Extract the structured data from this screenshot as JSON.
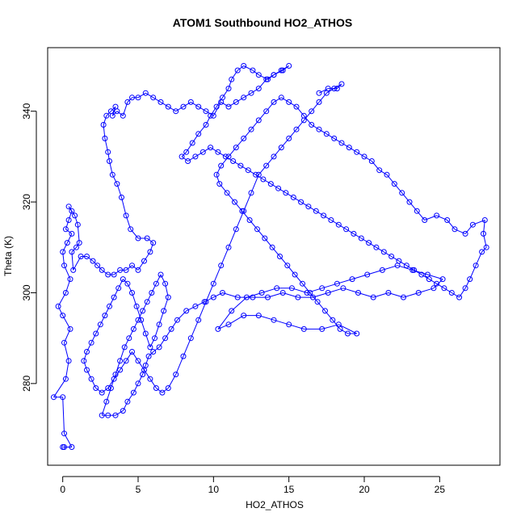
{
  "chart_data": {
    "type": "scatter",
    "title": "ATOM1 Southbound HO2_ATHOS",
    "xlabel": "HO2_ATHOS",
    "ylabel": "Theta (K)",
    "xlim": [
      -1,
      29
    ],
    "ylim": [
      262,
      354
    ],
    "xticks": [
      0,
      5,
      10,
      15,
      20,
      25
    ],
    "yticks": [
      280,
      300,
      320,
      340
    ],
    "grid": false,
    "legend": "none",
    "marker": "open-circle",
    "connected": true,
    "color": "#0000ff",
    "series": [
      {
        "points": [
          [
            0.1,
            266
          ],
          [
            0.0,
            266
          ],
          [
            0.6,
            266
          ],
          [
            0.1,
            269
          ],
          [
            0.0,
            277
          ],
          [
            -0.6,
            277
          ],
          [
            0.2,
            281
          ],
          [
            0.4,
            285
          ],
          [
            0.1,
            289
          ],
          [
            0.5,
            292
          ],
          [
            0.0,
            295
          ],
          [
            -0.3,
            297
          ],
          [
            0.2,
            300
          ],
          [
            0.5,
            303
          ],
          [
            0.1,
            306
          ],
          [
            0.0,
            309
          ],
          [
            0.3,
            311
          ],
          [
            0.6,
            313
          ],
          [
            0.2,
            314
          ],
          [
            0.4,
            316
          ],
          [
            0.6,
            318
          ],
          [
            0.4,
            319
          ],
          [
            0.8,
            317
          ],
          [
            1.0,
            315
          ],
          [
            1.1,
            311
          ],
          [
            0.9,
            310
          ],
          [
            0.6,
            309
          ],
          [
            0.7,
            305
          ],
          [
            1.2,
            308
          ],
          [
            1.6,
            308
          ],
          [
            2.0,
            307
          ],
          [
            2.3,
            306
          ],
          [
            2.6,
            305
          ],
          [
            3.0,
            304
          ],
          [
            3.4,
            304
          ],
          [
            3.8,
            305
          ],
          [
            4.2,
            305
          ],
          [
            4.6,
            306
          ],
          [
            5.0,
            305
          ],
          [
            5.4,
            307
          ],
          [
            5.8,
            309
          ],
          [
            6.0,
            311
          ],
          [
            5.6,
            312
          ],
          [
            5.0,
            312
          ],
          [
            4.5,
            314
          ],
          [
            4.2,
            317
          ],
          [
            3.9,
            321
          ],
          [
            3.6,
            324
          ],
          [
            3.3,
            326
          ],
          [
            3.1,
            329
          ],
          [
            3.0,
            331
          ],
          [
            2.8,
            334
          ],
          [
            2.7,
            337
          ],
          [
            2.9,
            339
          ],
          [
            3.2,
            340
          ],
          [
            3.5,
            341
          ],
          [
            3.3,
            339
          ],
          [
            3.6,
            340
          ],
          [
            4.0,
            339
          ],
          [
            4.3,
            342
          ],
          [
            4.6,
            343
          ],
          [
            5.0,
            343
          ],
          [
            5.5,
            344
          ],
          [
            6.0,
            343
          ],
          [
            6.5,
            342
          ],
          [
            7.0,
            341
          ],
          [
            7.5,
            340
          ],
          [
            8.0,
            341
          ],
          [
            8.5,
            342
          ],
          [
            9.0,
            341
          ],
          [
            9.5,
            340
          ],
          [
            10.0,
            339
          ],
          [
            10.5,
            342
          ],
          [
            11.0,
            341
          ],
          [
            11.5,
            342
          ],
          [
            12.0,
            343
          ],
          [
            12.5,
            344
          ],
          [
            13.0,
            345
          ],
          [
            13.5,
            347
          ],
          [
            14.0,
            348
          ],
          [
            14.5,
            349
          ],
          [
            15.0,
            350
          ],
          [
            14.6,
            349
          ],
          [
            14.0,
            348
          ],
          [
            13.6,
            347
          ],
          [
            13.0,
            348
          ],
          [
            12.6,
            349
          ],
          [
            12.0,
            350
          ],
          [
            11.6,
            349
          ],
          [
            11.2,
            347
          ],
          [
            11.0,
            345
          ],
          [
            10.6,
            343
          ],
          [
            10.2,
            341
          ],
          [
            9.8,
            339
          ],
          [
            9.5,
            337
          ],
          [
            9.0,
            335
          ],
          [
            8.6,
            333
          ],
          [
            8.2,
            331
          ],
          [
            7.9,
            330
          ],
          [
            8.3,
            329
          ],
          [
            8.8,
            330
          ],
          [
            9.3,
            331
          ],
          [
            9.8,
            332
          ],
          [
            10.3,
            331
          ],
          [
            10.8,
            330
          ],
          [
            11.3,
            329
          ],
          [
            11.8,
            328
          ],
          [
            12.3,
            327
          ],
          [
            12.8,
            326
          ],
          [
            13.3,
            325
          ],
          [
            13.8,
            324
          ],
          [
            14.3,
            323
          ],
          [
            14.8,
            322
          ],
          [
            15.3,
            321
          ],
          [
            15.8,
            320
          ],
          [
            16.3,
            319
          ],
          [
            16.8,
            318
          ],
          [
            17.3,
            317
          ],
          [
            17.8,
            316
          ],
          [
            18.3,
            315
          ],
          [
            18.8,
            314
          ],
          [
            19.3,
            313
          ],
          [
            19.8,
            312
          ],
          [
            20.3,
            311
          ],
          [
            20.8,
            310
          ],
          [
            21.3,
            309
          ],
          [
            21.8,
            308
          ],
          [
            22.3,
            307
          ],
          [
            22.8,
            306
          ],
          [
            23.3,
            305
          ],
          [
            23.8,
            304
          ],
          [
            24.3,
            303
          ],
          [
            24.8,
            302
          ],
          [
            25.3,
            301
          ],
          [
            25.8,
            300
          ],
          [
            26.3,
            299
          ],
          [
            26.7,
            301
          ],
          [
            27.0,
            303
          ],
          [
            27.4,
            306
          ],
          [
            27.8,
            309
          ],
          [
            28.1,
            310
          ],
          [
            27.9,
            313
          ],
          [
            28.0,
            316
          ],
          [
            27.2,
            315
          ],
          [
            26.7,
            313
          ],
          [
            26.0,
            314
          ],
          [
            25.5,
            316
          ],
          [
            24.8,
            317
          ],
          [
            24.0,
            316
          ],
          [
            23.5,
            318
          ],
          [
            23.0,
            320
          ],
          [
            22.5,
            322
          ],
          [
            22.0,
            324
          ],
          [
            21.5,
            326
          ],
          [
            21.0,
            327
          ],
          [
            20.5,
            329
          ],
          [
            20.0,
            330
          ],
          [
            19.5,
            331
          ],
          [
            19.0,
            332
          ],
          [
            18.5,
            333
          ],
          [
            18.0,
            334
          ],
          [
            17.5,
            335
          ],
          [
            17.0,
            336
          ],
          [
            16.5,
            337
          ],
          [
            16.0,
            339
          ],
          [
            15.5,
            341
          ],
          [
            15.0,
            342
          ],
          [
            14.5,
            343
          ],
          [
            14.0,
            342
          ],
          [
            13.5,
            340
          ],
          [
            13.0,
            338
          ],
          [
            12.5,
            336
          ],
          [
            12.0,
            334
          ],
          [
            11.5,
            332
          ],
          [
            11.0,
            330
          ],
          [
            10.5,
            328
          ],
          [
            10.2,
            326
          ],
          [
            10.4,
            324
          ],
          [
            10.9,
            322
          ],
          [
            11.4,
            320
          ],
          [
            11.9,
            318
          ],
          [
            12.4,
            316
          ],
          [
            12.9,
            314
          ],
          [
            13.4,
            312
          ],
          [
            13.9,
            310
          ],
          [
            14.4,
            308
          ],
          [
            14.9,
            306
          ],
          [
            15.4,
            304
          ],
          [
            15.9,
            302
          ],
          [
            16.4,
            300
          ],
          [
            16.9,
            298
          ],
          [
            17.4,
            296
          ],
          [
            17.9,
            294
          ],
          [
            18.4,
            292
          ],
          [
            18.9,
            291
          ],
          [
            19.5,
            291
          ],
          [
            18.3,
            293
          ],
          [
            17.2,
            292
          ],
          [
            16.0,
            292
          ],
          [
            15.0,
            293
          ],
          [
            14.0,
            294
          ],
          [
            13.0,
            295
          ],
          [
            12.0,
            295
          ],
          [
            11.0,
            293
          ],
          [
            10.3,
            292
          ],
          [
            11.2,
            296
          ],
          [
            12.2,
            299
          ],
          [
            13.2,
            300
          ],
          [
            14.2,
            301
          ],
          [
            15.2,
            301
          ],
          [
            16.2,
            300
          ],
          [
            17.2,
            301
          ],
          [
            18.2,
            302
          ],
          [
            19.2,
            303
          ],
          [
            20.2,
            304
          ],
          [
            21.2,
            305
          ],
          [
            22.2,
            306
          ],
          [
            23.2,
            305
          ],
          [
            24.2,
            304
          ],
          [
            25.2,
            303
          ],
          [
            24.6,
            301
          ],
          [
            23.6,
            300
          ],
          [
            22.6,
            299
          ],
          [
            21.6,
            300
          ],
          [
            20.6,
            299
          ],
          [
            19.6,
            300
          ],
          [
            18.6,
            301
          ],
          [
            17.6,
            300
          ],
          [
            16.6,
            299
          ],
          [
            15.6,
            299
          ],
          [
            14.6,
            300
          ],
          [
            13.6,
            299
          ],
          [
            12.6,
            299
          ],
          [
            11.6,
            299
          ],
          [
            10.6,
            300
          ],
          [
            10.0,
            299
          ],
          [
            9.4,
            298
          ],
          [
            8.8,
            297
          ],
          [
            8.2,
            296
          ],
          [
            7.6,
            294
          ],
          [
            7.2,
            292
          ],
          [
            6.8,
            290
          ],
          [
            6.4,
            288
          ],
          [
            6.0,
            287
          ],
          [
            5.7,
            286
          ],
          [
            5.5,
            284
          ],
          [
            5.3,
            282
          ],
          [
            5.0,
            280
          ],
          [
            4.7,
            278
          ],
          [
            4.3,
            276
          ],
          [
            4.0,
            274
          ],
          [
            3.5,
            273
          ],
          [
            3.0,
            273
          ],
          [
            2.6,
            273
          ],
          [
            2.9,
            276
          ],
          [
            3.2,
            279
          ],
          [
            3.5,
            282
          ],
          [
            3.8,
            285
          ],
          [
            4.1,
            288
          ],
          [
            4.4,
            290
          ],
          [
            4.7,
            292
          ],
          [
            5.0,
            294
          ],
          [
            5.3,
            296
          ],
          [
            5.6,
            298
          ],
          [
            5.9,
            300
          ],
          [
            6.2,
            302
          ],
          [
            6.5,
            304
          ],
          [
            6.8,
            302
          ],
          [
            7.0,
            299
          ],
          [
            6.7,
            296
          ],
          [
            6.4,
            293
          ],
          [
            6.1,
            290
          ],
          [
            5.8,
            288
          ],
          [
            5.5,
            291
          ],
          [
            5.2,
            294
          ],
          [
            4.9,
            297
          ],
          [
            4.6,
            300
          ],
          [
            4.3,
            302
          ],
          [
            4.0,
            303
          ],
          [
            3.7,
            301
          ],
          [
            3.4,
            299
          ],
          [
            3.1,
            297
          ],
          [
            2.8,
            295
          ],
          [
            2.5,
            293
          ],
          [
            2.2,
            291
          ],
          [
            1.9,
            289
          ],
          [
            1.6,
            287
          ],
          [
            1.4,
            285
          ],
          [
            1.6,
            283
          ],
          [
            1.9,
            281
          ],
          [
            2.2,
            279
          ],
          [
            2.6,
            278
          ],
          [
            3.0,
            279
          ],
          [
            3.4,
            281
          ],
          [
            3.8,
            283
          ],
          [
            4.2,
            285
          ],
          [
            4.6,
            287
          ],
          [
            5.0,
            285
          ],
          [
            5.4,
            283
          ],
          [
            5.8,
            281
          ],
          [
            6.2,
            279
          ],
          [
            6.6,
            278
          ],
          [
            7.0,
            279
          ],
          [
            7.5,
            282
          ],
          [
            8.0,
            286
          ],
          [
            8.5,
            290
          ],
          [
            9.0,
            294
          ],
          [
            9.5,
            298
          ],
          [
            10.0,
            302
          ],
          [
            10.5,
            306
          ],
          [
            11.0,
            310
          ],
          [
            11.5,
            314
          ],
          [
            12.0,
            318
          ],
          [
            12.5,
            322
          ],
          [
            13.0,
            326
          ],
          [
            13.5,
            328
          ],
          [
            14.0,
            330
          ],
          [
            14.5,
            332
          ],
          [
            15.0,
            334
          ],
          [
            15.5,
            336
          ],
          [
            16.0,
            338
          ],
          [
            16.5,
            340
          ],
          [
            17.0,
            342
          ],
          [
            17.5,
            344
          ],
          [
            18.0,
            345
          ],
          [
            18.5,
            346
          ],
          [
            18.2,
            345
          ],
          [
            17.6,
            345
          ],
          [
            17.0,
            344
          ]
        ]
      }
    ]
  }
}
